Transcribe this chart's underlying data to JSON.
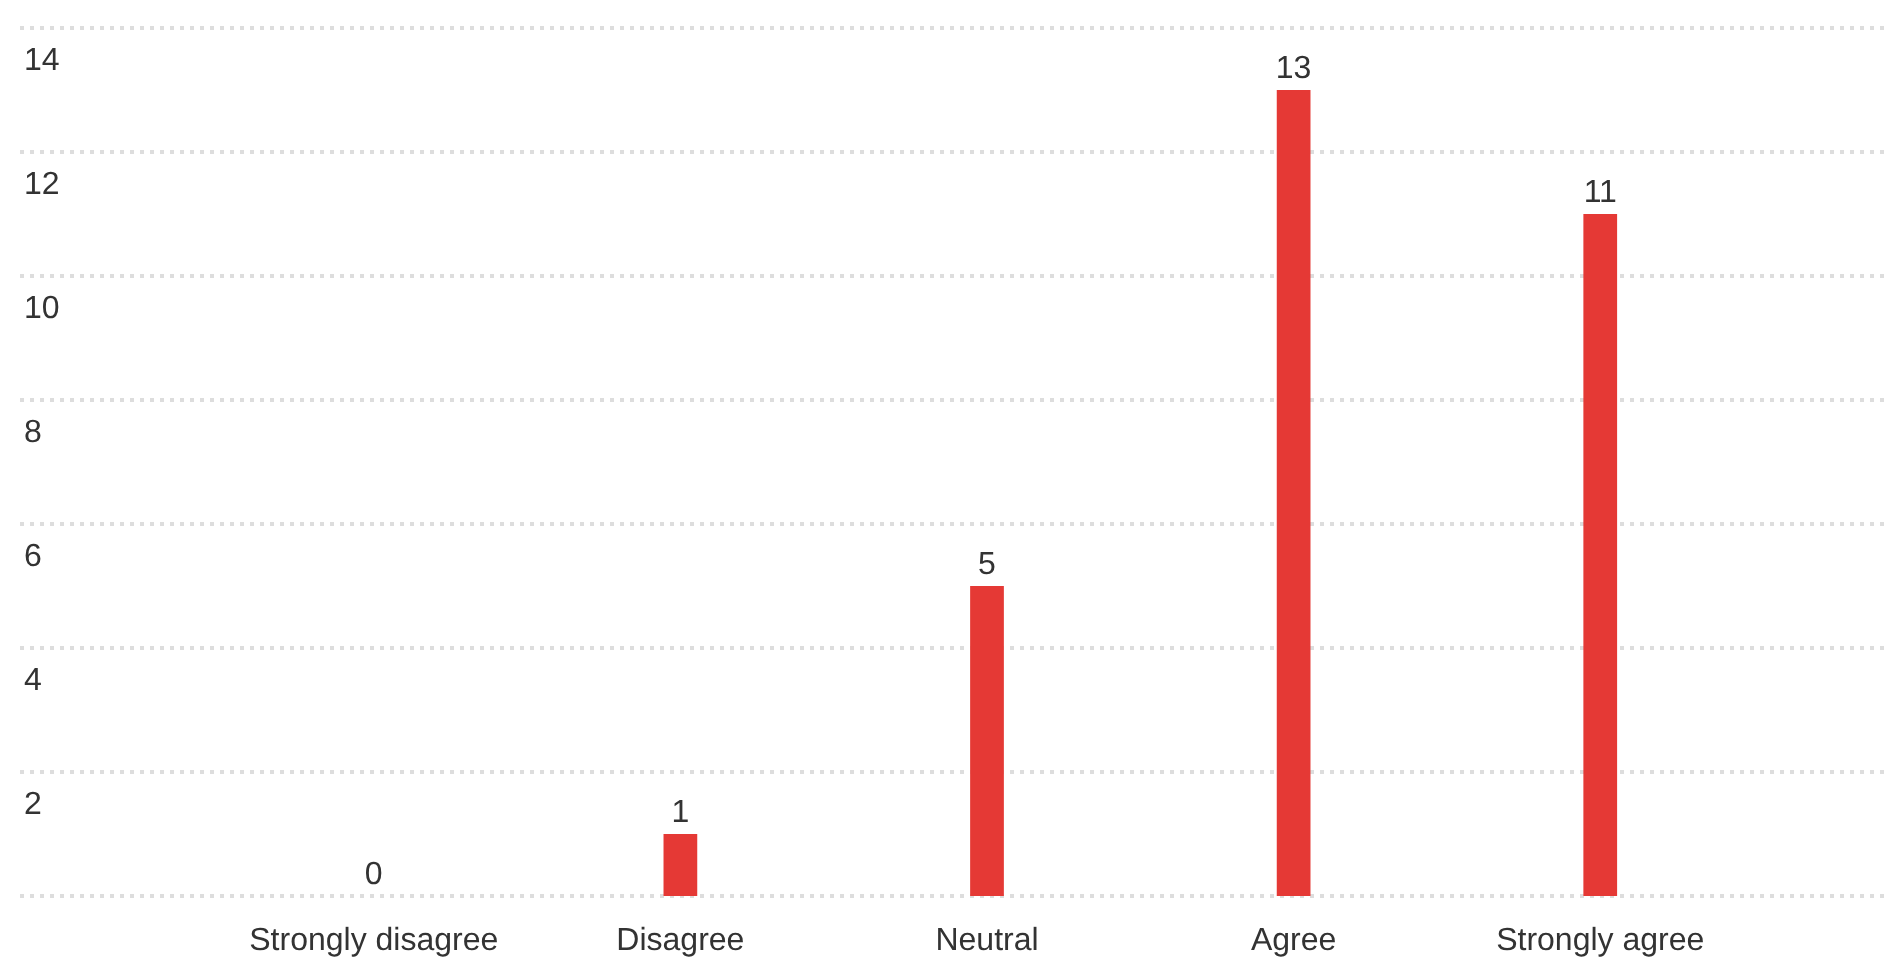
{
  "chart_data": {
    "type": "bar",
    "categories": [
      "Strongly disagree",
      "Disagree",
      "Neutral",
      "Agree",
      "Strongly agree"
    ],
    "values": [
      0,
      1,
      5,
      13,
      11
    ],
    "color": "#e53935",
    "ylim": [
      0,
      14
    ],
    "yticks": [
      {
        "value": 0,
        "label": null
      },
      2,
      4,
      6,
      8,
      10,
      12,
      14
    ],
    "grid": "y",
    "data_labels": true
  }
}
